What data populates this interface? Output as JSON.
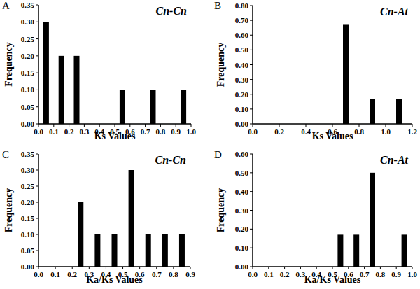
{
  "chart_data": [
    {
      "type": "bar",
      "panel_label": "A",
      "title": "Cn-Cn",
      "x_label": "Ks Values",
      "y_label": "Frequency",
      "x": [
        0.05,
        0.15,
        0.25,
        0.55,
        0.75,
        0.95
      ],
      "values": [
        0.3,
        0.2,
        0.2,
        0.1,
        0.1,
        0.1
      ],
      "color": "#000000",
      "xlim": [
        0,
        1.0
      ],
      "xticks": [
        {
          "value": 0,
          "label": "0.0"
        },
        0.1,
        0.2,
        0.3,
        0.4,
        0.5,
        0.6,
        0.7,
        0.8,
        0.9,
        {
          "value": 1,
          "label": "1.0"
        }
      ],
      "ylim": [
        0,
        0.35
      ],
      "yticks": [
        {
          "value": 0,
          "label": "0.00"
        },
        0.05,
        {
          "value": 0.1,
          "label": "0.10"
        },
        0.15,
        {
          "value": 0.2,
          "label": "0.20"
        },
        0.25,
        {
          "value": 0.3,
          "label": "0.30"
        },
        0.35
      ]
    },
    {
      "type": "bar",
      "panel_label": "B",
      "title": "Cn-At",
      "x_label": "Ks Values",
      "y_label": "Frequency",
      "x": [
        0.7,
        0.9,
        1.1
      ],
      "values": [
        0.67,
        0.17,
        0.17
      ],
      "color": "#000000",
      "xlim": [
        0,
        1.2
      ],
      "xticks": [
        {
          "value": 0,
          "label": "0.0"
        },
        0.2,
        0.4,
        0.6,
        0.8,
        {
          "value": 1,
          "label": "1.0"
        },
        1.2
      ],
      "ylim": [
        0,
        0.8
      ],
      "yticks": [
        {
          "value": 0,
          "label": "0.00"
        },
        {
          "value": 0.1,
          "label": "0.10"
        },
        {
          "value": 0.2,
          "label": "0.20"
        },
        {
          "value": 0.3,
          "label": "0.30"
        },
        {
          "value": 0.4,
          "label": "0.40"
        },
        {
          "value": 0.5,
          "label": "0.50"
        },
        {
          "value": 0.6,
          "label": "0.60"
        },
        {
          "value": 0.7,
          "label": "0.70"
        },
        {
          "value": 0.8,
          "label": "0.80"
        }
      ]
    },
    {
      "type": "bar",
      "panel_label": "C",
      "title": "Cn-Cn",
      "x_label": "Ka/Ks Values",
      "y_label": "Frequency",
      "x": [
        0.25,
        0.35,
        0.45,
        0.55,
        0.65,
        0.75,
        0.85
      ],
      "values": [
        0.2,
        0.1,
        0.1,
        0.3,
        0.1,
        0.1,
        0.1
      ],
      "color": "#000000",
      "xlim": [
        0,
        0.9
      ],
      "xticks": [
        {
          "value": 0,
          "label": "0.0"
        },
        0.1,
        0.2,
        0.3,
        0.4,
        0.5,
        0.6,
        0.7,
        0.8,
        0.9
      ],
      "ylim": [
        0,
        0.35
      ],
      "yticks": [
        {
          "value": 0,
          "label": "0.00"
        },
        0.05,
        {
          "value": 0.1,
          "label": "0.10"
        },
        0.15,
        {
          "value": 0.2,
          "label": "0.20"
        },
        0.25,
        {
          "value": 0.3,
          "label": "0.30"
        },
        0.35
      ]
    },
    {
      "type": "bar",
      "panel_label": "D",
      "title": "Cn-At",
      "x_label": "Ka/Ks Values",
      "y_label": "Frequency",
      "x": [
        0.55,
        0.65,
        0.75,
        0.95
      ],
      "values": [
        0.17,
        0.17,
        0.5,
        0.17
      ],
      "color": "#000000",
      "xlim": [
        0,
        1.0
      ],
      "xticks": [
        {
          "value": 0,
          "label": "0.0"
        },
        0.1,
        0.2,
        0.3,
        0.4,
        0.5,
        0.6,
        0.7,
        0.8,
        0.9,
        {
          "value": 1,
          "label": "1.0"
        }
      ],
      "ylim": [
        0,
        0.6
      ],
      "yticks": [
        {
          "value": 0,
          "label": "0.00"
        },
        {
          "value": 0.1,
          "label": "0.10"
        },
        {
          "value": 0.2,
          "label": "0.20"
        },
        {
          "value": 0.3,
          "label": "0.30"
        },
        {
          "value": 0.4,
          "label": "0.40"
        },
        {
          "value": 0.5,
          "label": "0.50"
        },
        {
          "value": 0.6,
          "label": "0.60"
        }
      ]
    }
  ]
}
